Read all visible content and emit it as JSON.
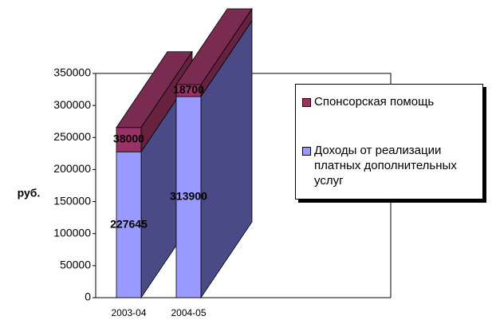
{
  "chart_data": {
    "type": "bar3d_stacked",
    "y_label": "руб.",
    "categories": [
      "2003-04",
      "2004-05"
    ],
    "series": [
      {
        "name": "Доходы от реализации платных дополнительных услуг",
        "color": "#9999ff",
        "side_color": "#4a4a86",
        "values": [
          227645,
          313900
        ]
      },
      {
        "name": "Спонсорская помощь",
        "color": "#993366",
        "side_color": "#66223f",
        "top_color": "#7a2b52",
        "values": [
          38000,
          18700
        ]
      }
    ],
    "ylim": [
      0,
      350000
    ],
    "yticks": [
      0,
      50000,
      100000,
      150000,
      200000,
      250000,
      300000,
      350000
    ]
  }
}
